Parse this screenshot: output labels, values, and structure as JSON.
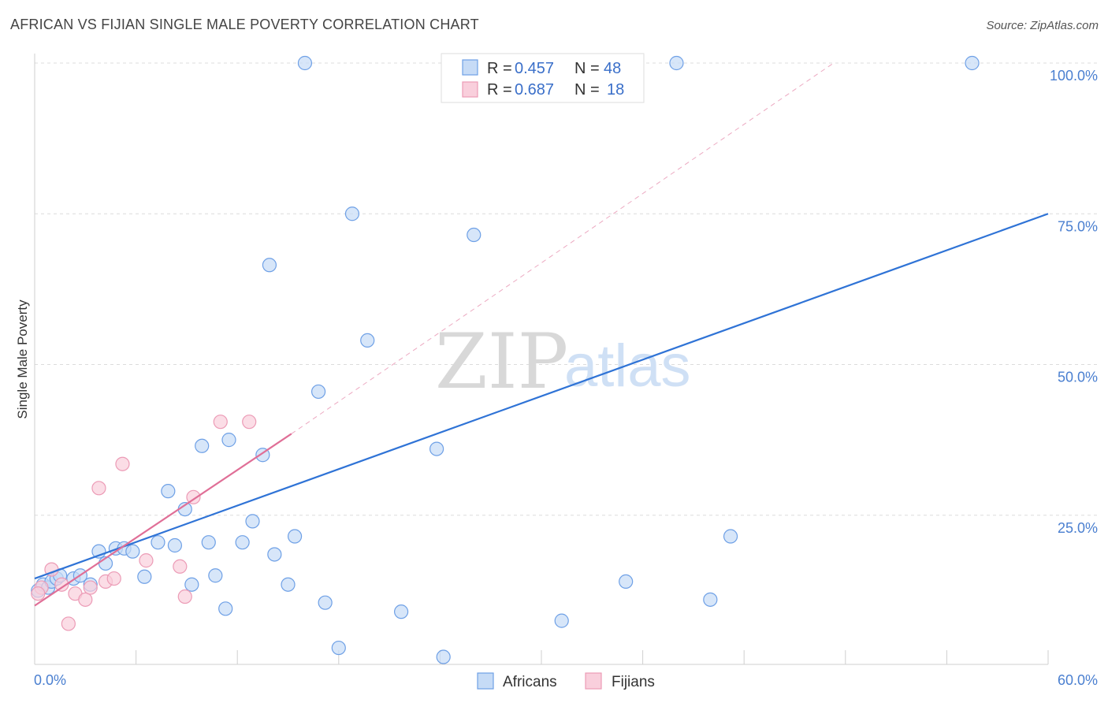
{
  "header": {
    "title": "AFRICAN VS FIJIAN SINGLE MALE POVERTY CORRELATION CHART",
    "source": "Source: ZipAtlas.com"
  },
  "watermark": {
    "zip": "ZIP",
    "atlas": "atlas"
  },
  "chart_data": {
    "type": "scatter",
    "title": "AFRICAN VS FIJIAN SINGLE MALE POVERTY CORRELATION CHART",
    "xlabel": "",
    "ylabel": "Single Male Poverty",
    "xlim": [
      0,
      60
    ],
    "ylim": [
      0,
      105
    ],
    "x_tick_labels": {
      "min": "0.0%",
      "max": "60.0%"
    },
    "y_ticks": [
      {
        "value": 25,
        "label": "25.0%"
      },
      {
        "value": 50,
        "label": "50.0%"
      },
      {
        "value": 75,
        "label": "75.0%"
      },
      {
        "value": 100,
        "label": "100.0%"
      }
    ],
    "legend": [
      {
        "r_label": "R =",
        "r_value": "0.457",
        "n_label": "N =",
        "n_value": "48"
      },
      {
        "r_label": "R =",
        "r_value": "0.687",
        "n_label": "N =",
        "n_value": "18"
      }
    ],
    "series": [
      {
        "name": "Africans",
        "color": "#6ea0e6",
        "fill": "#c6dbf6",
        "trend_color": "#2f73d6",
        "trend": {
          "x0": 0,
          "y0": 14.5,
          "x1": 60,
          "y1": 75
        },
        "points": [
          [
            0.2,
            12.5
          ],
          [
            0.5,
            13.5
          ],
          [
            0.8,
            13
          ],
          [
            1.0,
            14
          ],
          [
            1.3,
            14.5
          ],
          [
            1.5,
            15
          ],
          [
            2.3,
            14.5
          ],
          [
            2.7,
            15
          ],
          [
            3.3,
            13.5
          ],
          [
            3.8,
            19
          ],
          [
            4.2,
            17
          ],
          [
            4.8,
            19.5
          ],
          [
            5.3,
            19.5
          ],
          [
            5.8,
            19
          ],
          [
            6.5,
            14.8
          ],
          [
            7.3,
            20.5
          ],
          [
            7.9,
            29
          ],
          [
            8.3,
            20
          ],
          [
            8.9,
            26
          ],
          [
            9.3,
            13.5
          ],
          [
            9.9,
            36.5
          ],
          [
            10.3,
            20.5
          ],
          [
            10.7,
            15
          ],
          [
            11.3,
            9.5
          ],
          [
            11.5,
            37.5
          ],
          [
            12.3,
            20.5
          ],
          [
            12.9,
            24
          ],
          [
            13.5,
            35
          ],
          [
            13.9,
            66.5
          ],
          [
            14.2,
            18.5
          ],
          [
            15.0,
            13.5
          ],
          [
            15.4,
            21.5
          ],
          [
            16.0,
            100
          ],
          [
            16.8,
            45.5
          ],
          [
            17.2,
            10.5
          ],
          [
            18.0,
            3
          ],
          [
            18.8,
            75
          ],
          [
            19.7,
            54
          ],
          [
            21.7,
            9
          ],
          [
            23.8,
            36
          ],
          [
            24.2,
            1.5
          ],
          [
            26.0,
            71.5
          ],
          [
            31.2,
            7.5
          ],
          [
            35.0,
            14
          ],
          [
            38.0,
            100
          ],
          [
            40.0,
            11
          ],
          [
            41.2,
            21.5
          ],
          [
            55.5,
            100
          ]
        ]
      },
      {
        "name": "Fijians",
        "color": "#ec9bb6",
        "fill": "#f9cfdc",
        "trend_color": "#e06f97",
        "trend": {
          "x0": 0,
          "y0": 10,
          "x1": 15.2,
          "y1": 38.5
        },
        "trend_ext": {
          "x0": 15.2,
          "y0": 38.5,
          "x1": 47.3,
          "y1": 100
        },
        "points": [
          [
            0.4,
            13
          ],
          [
            1.0,
            16
          ],
          [
            1.6,
            13.5
          ],
          [
            2.0,
            7
          ],
          [
            2.4,
            12
          ],
          [
            3.0,
            11
          ],
          [
            3.3,
            13
          ],
          [
            3.8,
            29.5
          ],
          [
            4.2,
            14
          ],
          [
            4.7,
            14.5
          ],
          [
            5.2,
            33.5
          ],
          [
            6.6,
            17.5
          ],
          [
            8.6,
            16.5
          ],
          [
            8.9,
            11.5
          ],
          [
            9.4,
            28
          ],
          [
            11.0,
            40.5
          ],
          [
            12.7,
            40.5
          ],
          [
            0.2,
            12
          ]
        ]
      }
    ]
  }
}
